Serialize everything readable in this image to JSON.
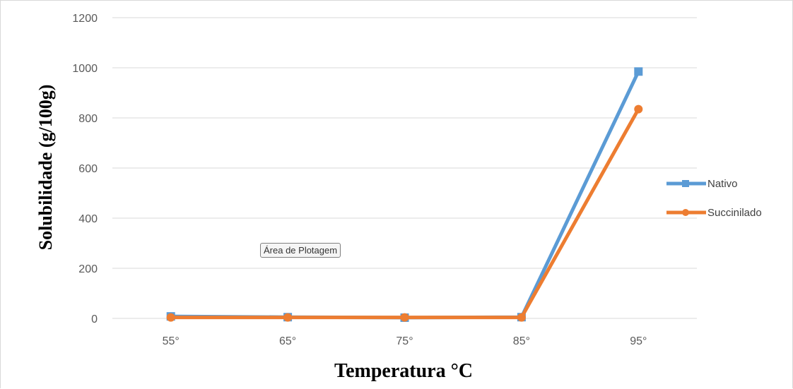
{
  "chart_data": {
    "type": "line",
    "categories": [
      "55°",
      "65°",
      "75°",
      "85°",
      "95°"
    ],
    "series": [
      {
        "name": "Nativo",
        "values": [
          8,
          5,
          3,
          5,
          985
        ],
        "color": "#5b9bd5",
        "marker": "square"
      },
      {
        "name": "Succinilado",
        "values": [
          4,
          4,
          4,
          4,
          835
        ],
        "color": "#ed7d31",
        "marker": "circle"
      }
    ],
    "xlabel": "Temperatura °C",
    "ylabel": "Solubilidade (g/100g)",
    "ylim": [
      0,
      1200
    ],
    "yticks": [
      "0",
      "200",
      "400",
      "600",
      "800",
      "1000",
      "1200"
    ],
    "grid": true,
    "legend_position": "right"
  },
  "tooltip": {
    "text": "Área de Plotagem"
  }
}
